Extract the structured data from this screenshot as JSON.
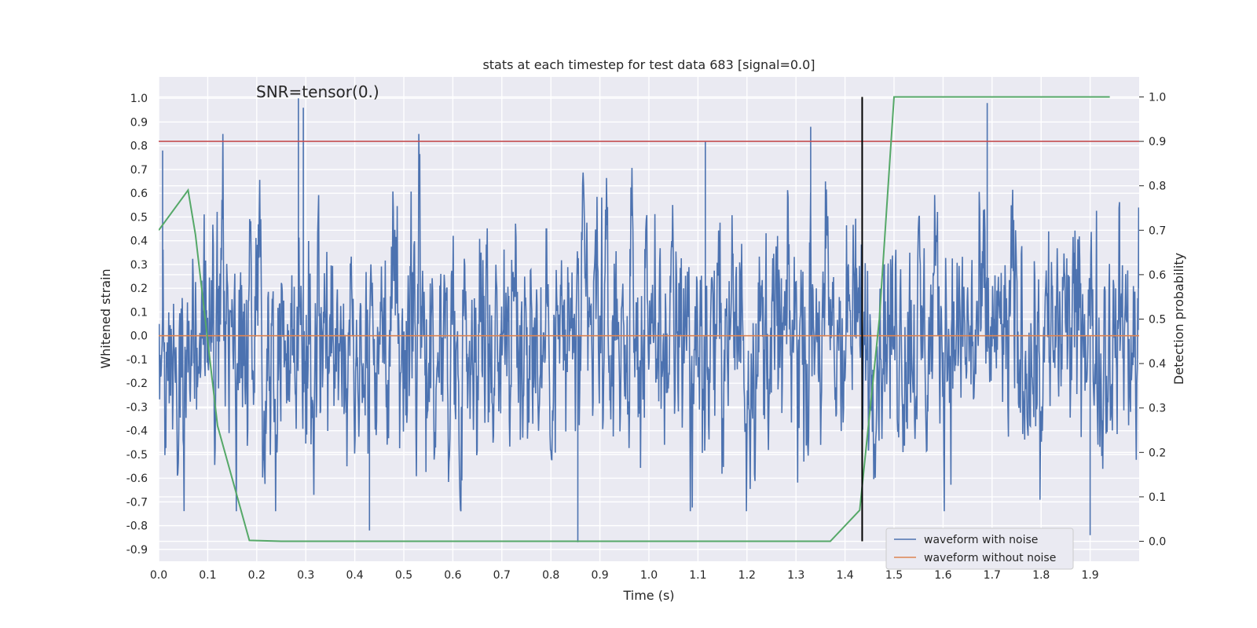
{
  "chart_data": {
    "type": "line",
    "title": "stats at each timestep for test data 683 [signal=0.0]",
    "xlabel": "Time (s)",
    "ylabel": "Whitened strain",
    "y2label": "Detection probability",
    "annotation": "SNR=tensor(0.)",
    "xlim": [
      0.0,
      2.0
    ],
    "ylim": [
      -0.95,
      1.09
    ],
    "y2lim": [
      -0.045,
      1.045
    ],
    "xticks": [
      "0.0",
      "0.1",
      "0.2",
      "0.3",
      "0.4",
      "0.5",
      "0.6",
      "0.7",
      "0.8",
      "0.9",
      "1.0",
      "1.1",
      "1.2",
      "1.3",
      "1.4",
      "1.5",
      "1.6",
      "1.7",
      "1.8",
      "1.9"
    ],
    "yticks": [
      "1.0",
      "0.9",
      "0.8",
      "0.7",
      "0.6",
      "0.5",
      "0.4",
      "0.3",
      "0.2",
      "0.1",
      "0.0",
      "-0.1",
      "-0.2",
      "-0.3",
      "-0.4",
      "-0.5",
      "-0.6",
      "-0.7",
      "-0.8",
      "-0.9"
    ],
    "y2ticks": [
      "1.0",
      "0.9",
      "0.8",
      "0.7",
      "0.6",
      "0.5",
      "0.4",
      "0.3",
      "0.2",
      "0.1",
      "0.0"
    ],
    "grid": true,
    "legend_position": "lower-right",
    "colors": {
      "noisy": "#4c72b0",
      "clean": "#dd8452",
      "probability": "#55a868",
      "threshold": "#c44e52",
      "marker": "#000000",
      "background": "#eaeaf2",
      "grid": "#ffffff"
    },
    "series": [
      {
        "name": "waveform with noise",
        "axis": "left",
        "x_range": [
          0.0,
          2.0
        ],
        "samples": 2048,
        "amplitude_range": [
          -0.87,
          1.0
        ],
        "peaks": [
          {
            "x": 0.008,
            "y": 0.78
          },
          {
            "x": 0.285,
            "y": 1.0
          },
          {
            "x": 0.295,
            "y": 0.96
          },
          {
            "x": 0.43,
            "y": -0.82
          },
          {
            "x": 0.855,
            "y": -0.87
          },
          {
            "x": 1.115,
            "y": 0.82
          },
          {
            "x": 1.33,
            "y": 0.88
          },
          {
            "x": 1.69,
            "y": 0.98
          },
          {
            "x": 1.9,
            "y": -0.84
          }
        ]
      },
      {
        "name": "waveform without noise",
        "axis": "left",
        "x": [
          0.0,
          2.0
        ],
        "y": [
          0.0,
          0.0
        ]
      },
      {
        "axis": "right",
        "x": [
          0.0,
          0.06,
          0.075,
          0.12,
          0.185,
          0.25,
          1.37,
          1.43,
          1.47,
          1.5,
          1.94
        ],
        "y": [
          0.7,
          0.79,
          0.69,
          0.26,
          0.002,
          0.0,
          0.0,
          0.07,
          0.5,
          1.0,
          1.0
        ]
      }
    ],
    "threshold_line": {
      "axis": "right",
      "y": 0.9
    },
    "vertical_marker": {
      "x": 1.435,
      "y2_from": 0.0,
      "y2_to": 1.0
    }
  }
}
